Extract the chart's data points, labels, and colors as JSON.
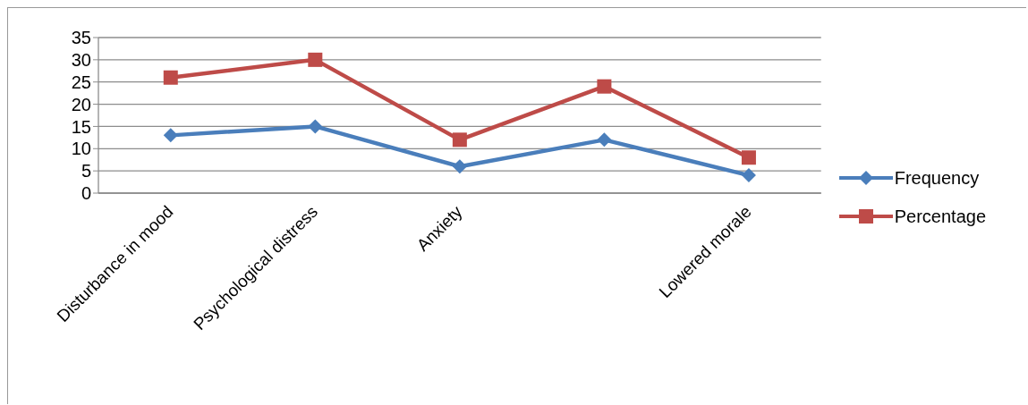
{
  "chart_data": {
    "type": "line",
    "categories": [
      "Disturbance in mood",
      "Psychological distress",
      "Anxiety",
      null,
      "Lowered morale"
    ],
    "series": [
      {
        "name": "Frequency",
        "color": "#4a7ebb",
        "marker": "diamond",
        "values": [
          13,
          15,
          6,
          12,
          4
        ]
      },
      {
        "name": "Percentage",
        "color": "#be4b48",
        "marker": "square",
        "values": [
          26,
          30,
          12,
          24,
          8
        ]
      }
    ],
    "ylim": [
      0,
      35
    ],
    "yticks": [
      0,
      5,
      10,
      15,
      20,
      25,
      30,
      35
    ],
    "grid": "y",
    "legend": "right"
  }
}
